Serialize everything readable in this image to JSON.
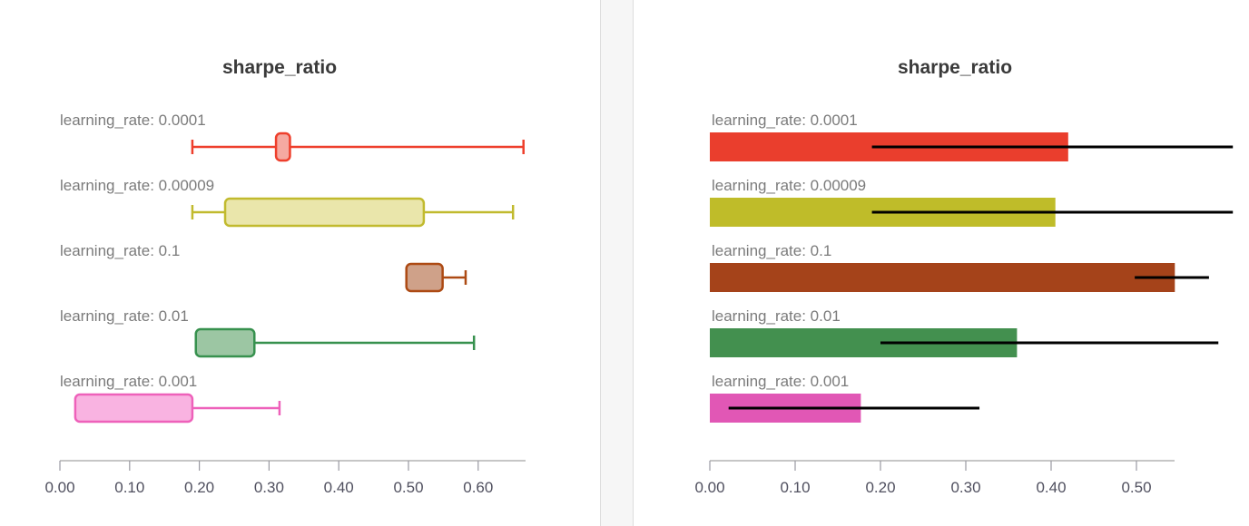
{
  "chart_data": [
    {
      "type": "boxplot",
      "title": "sharpe_ratio",
      "orientation": "horizontal",
      "xlim": [
        0,
        0.67
      ],
      "x_ticks": [
        0,
        0.1,
        0.2,
        0.3,
        0.4,
        0.5,
        0.6
      ],
      "tick_format_decimals": 2,
      "grid": false,
      "legend": false,
      "categories": [
        "learning_rate: 0.0001",
        "learning_rate: 0.00009",
        "learning_rate: 0.1",
        "learning_rate: 0.01",
        "learning_rate: 0.001"
      ],
      "series": [
        {
          "label": "learning_rate: 0.0001",
          "min": 0.19,
          "q1": 0.31,
          "q3": 0.33,
          "max": 0.665,
          "stroke": "#ee3f2c",
          "fill": "#f5a9a1"
        },
        {
          "label": "learning_rate: 0.00009",
          "min": 0.19,
          "q1": 0.237,
          "q3": 0.522,
          "max": 0.65,
          "stroke": "#c1ba2e",
          "fill": "#eae6ab"
        },
        {
          "label": "learning_rate: 0.1",
          "min": 0.497,
          "q1": 0.497,
          "q3": 0.549,
          "max": 0.582,
          "stroke": "#ad4a13",
          "fill": "#cfa189"
        },
        {
          "label": "learning_rate: 0.01",
          "min": 0.195,
          "q1": 0.195,
          "q3": 0.279,
          "max": 0.594,
          "stroke": "#37914e",
          "fill": "#9cc6a3"
        },
        {
          "label": "learning_rate: 0.001",
          "min": 0.022,
          "q1": 0.022,
          "q3": 0.19,
          "max": 0.315,
          "stroke": "#ee61ba",
          "fill": "#f9b3e1"
        }
      ]
    },
    {
      "type": "bar",
      "title": "sharpe_ratio",
      "orientation": "horizontal",
      "xlim": [
        0,
        0.545
      ],
      "x_ticks": [
        0,
        0.1,
        0.2,
        0.3,
        0.4,
        0.5
      ],
      "tick_format_decimals": 2,
      "grid": false,
      "legend": false,
      "error_bar_color": "#000000",
      "categories": [
        "learning_rate: 0.0001",
        "learning_rate: 0.00009",
        "learning_rate: 0.1",
        "learning_rate: 0.01",
        "learning_rate: 0.001"
      ],
      "series": [
        {
          "label": "learning_rate: 0.0001",
          "value": 0.42,
          "error_low": 0.19,
          "error_high": 0.613,
          "color": "#ea3e2d"
        },
        {
          "label": "learning_rate: 0.00009",
          "value": 0.405,
          "error_low": 0.19,
          "error_high": 0.613,
          "color": "#bfbc29"
        },
        {
          "label": "learning_rate: 0.1",
          "value": 0.545,
          "error_low": 0.498,
          "error_high": 0.585,
          "color": "#a5431a"
        },
        {
          "label": "learning_rate: 0.01",
          "value": 0.36,
          "error_low": 0.2,
          "error_high": 0.596,
          "color": "#43904f"
        },
        {
          "label": "learning_rate: 0.001",
          "value": 0.177,
          "error_low": 0.022,
          "error_high": 0.316,
          "color": "#e157b5"
        }
      ]
    }
  ],
  "axis_style": {
    "axis_line_color": "#b4b4b4",
    "tick_mark_color": "#9a9aa2"
  }
}
